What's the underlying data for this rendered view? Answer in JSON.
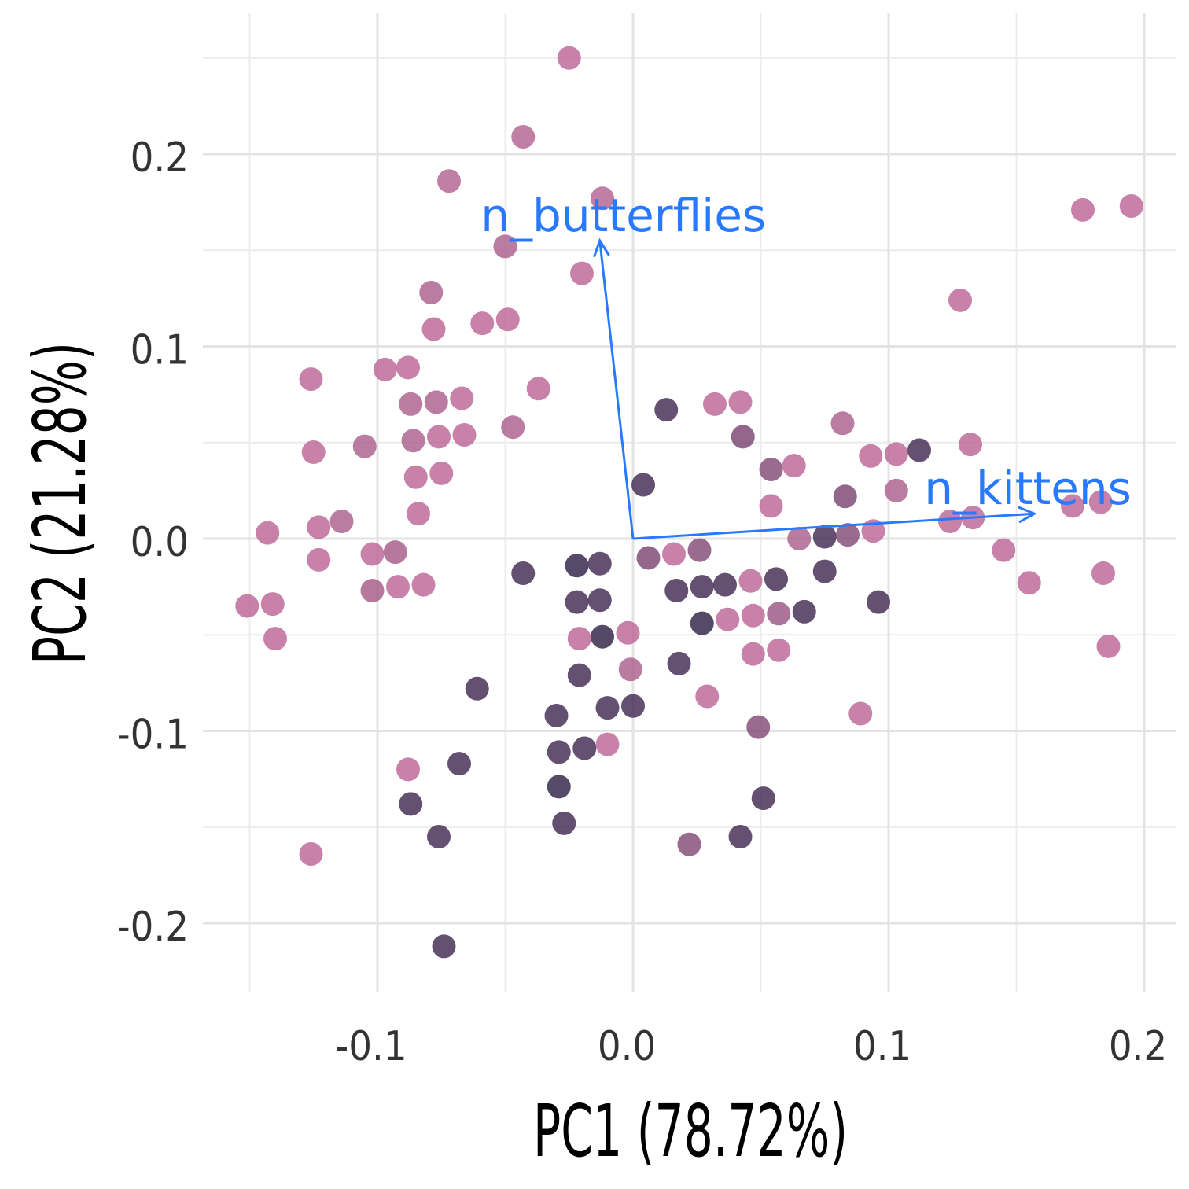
{
  "chart_data": {
    "type": "scatter",
    "title": "",
    "xlabel": "PC1 (78.72%)",
    "ylabel": "PC2 (21.28%)",
    "xlim": [
      -0.15,
      0.2
    ],
    "ylim": [
      -0.225,
      0.25
    ],
    "x_ticks": [
      -0.1,
      0.0,
      0.1,
      0.2
    ],
    "x_tick_labels": [
      "-0.1",
      "0.0",
      "0.1",
      "0.2"
    ],
    "y_ticks": [
      -0.2,
      -0.1,
      0.0,
      0.1,
      0.2
    ],
    "y_tick_labels": [
      "-0.2",
      "-0.1",
      "0.0",
      "0.1",
      "0.2"
    ],
    "grid": true,
    "legend": "none",
    "colors": {
      "pink": "#cc6f9f",
      "dark": "#2a1d42",
      "arrow": "#2979ff"
    },
    "points": [
      {
        "x": -0.025,
        "y": 0.25,
        "c": 0.1
      },
      {
        "x": -0.043,
        "y": 0.209,
        "c": 0.15
      },
      {
        "x": -0.072,
        "y": 0.186,
        "c": 0.15
      },
      {
        "x": -0.012,
        "y": 0.177,
        "c": 0.15
      },
      {
        "x": -0.05,
        "y": 0.152,
        "c": 0.2
      },
      {
        "x": -0.02,
        "y": 0.138,
        "c": 0.1
      },
      {
        "x": -0.079,
        "y": 0.128,
        "c": 0.2
      },
      {
        "x": -0.078,
        "y": 0.109,
        "c": 0.1
      },
      {
        "x": -0.059,
        "y": 0.112,
        "c": 0.1
      },
      {
        "x": -0.049,
        "y": 0.114,
        "c": 0.1
      },
      {
        "x": -0.097,
        "y": 0.088,
        "c": 0.1
      },
      {
        "x": -0.088,
        "y": 0.089,
        "c": 0.1
      },
      {
        "x": -0.126,
        "y": 0.083,
        "c": 0.1
      },
      {
        "x": -0.087,
        "y": 0.07,
        "c": 0.2
      },
      {
        "x": -0.077,
        "y": 0.071,
        "c": 0.2
      },
      {
        "x": -0.067,
        "y": 0.073,
        "c": 0.1
      },
      {
        "x": -0.037,
        "y": 0.078,
        "c": 0.1
      },
      {
        "x": -0.047,
        "y": 0.058,
        "c": 0.2
      },
      {
        "x": -0.086,
        "y": 0.051,
        "c": 0.2
      },
      {
        "x": -0.076,
        "y": 0.053,
        "c": 0.1
      },
      {
        "x": -0.066,
        "y": 0.054,
        "c": 0.1
      },
      {
        "x": -0.105,
        "y": 0.048,
        "c": 0.2
      },
      {
        "x": -0.125,
        "y": 0.045,
        "c": 0.1
      },
      {
        "x": -0.085,
        "y": 0.032,
        "c": 0.1
      },
      {
        "x": -0.075,
        "y": 0.034,
        "c": 0.1
      },
      {
        "x": -0.084,
        "y": 0.013,
        "c": 0.1
      },
      {
        "x": -0.114,
        "y": 0.009,
        "c": 0.2
      },
      {
        "x": -0.123,
        "y": 0.006,
        "c": 0.1
      },
      {
        "x": -0.143,
        "y": 0.003,
        "c": 0.1
      },
      {
        "x": -0.123,
        "y": -0.011,
        "c": 0.1
      },
      {
        "x": -0.102,
        "y": -0.008,
        "c": 0.1
      },
      {
        "x": -0.093,
        "y": -0.007,
        "c": 0.25
      },
      {
        "x": -0.102,
        "y": -0.027,
        "c": 0.25
      },
      {
        "x": -0.092,
        "y": -0.025,
        "c": 0.1
      },
      {
        "x": -0.082,
        "y": -0.024,
        "c": 0.1
      },
      {
        "x": -0.151,
        "y": -0.035,
        "c": 0.1
      },
      {
        "x": -0.141,
        "y": -0.034,
        "c": 0.1
      },
      {
        "x": -0.14,
        "y": -0.052,
        "c": 0.1
      },
      {
        "x": -0.088,
        "y": -0.12,
        "c": 0.1
      },
      {
        "x": -0.126,
        "y": -0.164,
        "c": 0.1
      },
      {
        "x": 0.013,
        "y": 0.067,
        "c": 0.85
      },
      {
        "x": 0.032,
        "y": 0.07,
        "c": 0.1
      },
      {
        "x": 0.042,
        "y": 0.071,
        "c": 0.1
      },
      {
        "x": 0.043,
        "y": 0.053,
        "c": 0.5
      },
      {
        "x": 0.004,
        "y": 0.028,
        "c": 0.85
      },
      {
        "x": 0.054,
        "y": 0.036,
        "c": 0.45
      },
      {
        "x": 0.063,
        "y": 0.038,
        "c": 0.1
      },
      {
        "x": 0.082,
        "y": 0.06,
        "c": 0.2
      },
      {
        "x": 0.093,
        "y": 0.043,
        "c": 0.1
      },
      {
        "x": 0.103,
        "y": 0.044,
        "c": 0.1
      },
      {
        "x": 0.112,
        "y": 0.046,
        "c": 0.85
      },
      {
        "x": 0.132,
        "y": 0.049,
        "c": 0.1
      },
      {
        "x": 0.054,
        "y": 0.017,
        "c": 0.1
      },
      {
        "x": 0.083,
        "y": 0.022,
        "c": 0.5
      },
      {
        "x": 0.103,
        "y": 0.025,
        "c": 0.2
      },
      {
        "x": 0.065,
        "y": -0.0,
        "c": 0.2
      },
      {
        "x": 0.075,
        "y": 0.001,
        "c": 0.85
      },
      {
        "x": 0.084,
        "y": 0.002,
        "c": 0.45
      },
      {
        "x": 0.094,
        "y": 0.004,
        "c": 0.1
      },
      {
        "x": 0.124,
        "y": 0.009,
        "c": 0.1
      },
      {
        "x": 0.133,
        "y": 0.011,
        "c": 0.1
      },
      {
        "x": 0.172,
        "y": 0.017,
        "c": 0.1
      },
      {
        "x": 0.183,
        "y": 0.019,
        "c": 0.1
      },
      {
        "x": 0.145,
        "y": -0.006,
        "c": 0.1
      },
      {
        "x": 0.155,
        "y": -0.023,
        "c": 0.1
      },
      {
        "x": 0.184,
        "y": -0.018,
        "c": 0.1
      },
      {
        "x": 0.186,
        "y": -0.056,
        "c": 0.1
      },
      {
        "x": 0.128,
        "y": 0.124,
        "c": 0.1
      },
      {
        "x": 0.176,
        "y": 0.171,
        "c": 0.1
      },
      {
        "x": 0.195,
        "y": 0.173,
        "c": 0.1
      },
      {
        "x": 0.006,
        "y": -0.01,
        "c": 0.5
      },
      {
        "x": 0.016,
        "y": -0.008,
        "c": 0.1
      },
      {
        "x": 0.026,
        "y": -0.006,
        "c": 0.45
      },
      {
        "x": 0.017,
        "y": -0.027,
        "c": 0.85
      },
      {
        "x": 0.027,
        "y": -0.025,
        "c": 0.85
      },
      {
        "x": 0.036,
        "y": -0.024,
        "c": 0.85
      },
      {
        "x": 0.046,
        "y": -0.022,
        "c": 0.1
      },
      {
        "x": 0.056,
        "y": -0.021,
        "c": 0.85
      },
      {
        "x": 0.075,
        "y": -0.017,
        "c": 0.85
      },
      {
        "x": 0.096,
        "y": -0.033,
        "c": 0.85
      },
      {
        "x": 0.037,
        "y": -0.042,
        "c": 0.1
      },
      {
        "x": 0.047,
        "y": -0.04,
        "c": 0.1
      },
      {
        "x": 0.057,
        "y": -0.039,
        "c": 0.3
      },
      {
        "x": 0.067,
        "y": -0.038,
        "c": 0.85
      },
      {
        "x": 0.027,
        "y": -0.044,
        "c": 0.95
      },
      {
        "x": 0.047,
        "y": -0.06,
        "c": 0.1
      },
      {
        "x": 0.057,
        "y": -0.058,
        "c": 0.1
      },
      {
        "x": 0.018,
        "y": -0.065,
        "c": 0.85
      },
      {
        "x": 0.029,
        "y": -0.082,
        "c": 0.1
      },
      {
        "x": 0.049,
        "y": -0.098,
        "c": 0.45
      },
      {
        "x": 0.089,
        "y": -0.091,
        "c": 0.1
      },
      {
        "x": 0.051,
        "y": -0.135,
        "c": 0.85
      },
      {
        "x": 0.042,
        "y": -0.155,
        "c": 0.85
      },
      {
        "x": 0.022,
        "y": -0.159,
        "c": 0.45
      },
      {
        "x": -0.022,
        "y": -0.014,
        "c": 0.95
      },
      {
        "x": -0.013,
        "y": -0.013,
        "c": 0.85
      },
      {
        "x": -0.043,
        "y": -0.018,
        "c": 0.85
      },
      {
        "x": -0.022,
        "y": -0.033,
        "c": 0.85
      },
      {
        "x": -0.013,
        "y": -0.032,
        "c": 0.85
      },
      {
        "x": -0.021,
        "y": -0.052,
        "c": 0.1
      },
      {
        "x": -0.012,
        "y": -0.051,
        "c": 0.95
      },
      {
        "x": -0.002,
        "y": -0.049,
        "c": 0.1
      },
      {
        "x": -0.001,
        "y": -0.068,
        "c": 0.2
      },
      {
        "x": -0.021,
        "y": -0.071,
        "c": 0.85
      },
      {
        "x": -0.061,
        "y": -0.078,
        "c": 0.85
      },
      {
        "x": -0.03,
        "y": -0.092,
        "c": 0.85
      },
      {
        "x": -0.01,
        "y": -0.088,
        "c": 0.85
      },
      {
        "x": 0.0,
        "y": -0.087,
        "c": 0.85
      },
      {
        "x": -0.029,
        "y": -0.111,
        "c": 0.85
      },
      {
        "x": -0.019,
        "y": -0.109,
        "c": 0.85
      },
      {
        "x": -0.01,
        "y": -0.107,
        "c": 0.1
      },
      {
        "x": -0.068,
        "y": -0.117,
        "c": 0.85
      },
      {
        "x": -0.029,
        "y": -0.129,
        "c": 0.95
      },
      {
        "x": -0.087,
        "y": -0.138,
        "c": 0.85
      },
      {
        "x": -0.027,
        "y": -0.148,
        "c": 0.85
      },
      {
        "x": -0.076,
        "y": -0.155,
        "c": 0.85
      },
      {
        "x": -0.074,
        "y": -0.212,
        "c": 0.85
      }
    ],
    "loadings": [
      {
        "name": "n_butterflies",
        "x": -0.013,
        "y": 0.155
      },
      {
        "name": "n_kittens",
        "x": 0.157,
        "y": 0.013
      }
    ]
  }
}
